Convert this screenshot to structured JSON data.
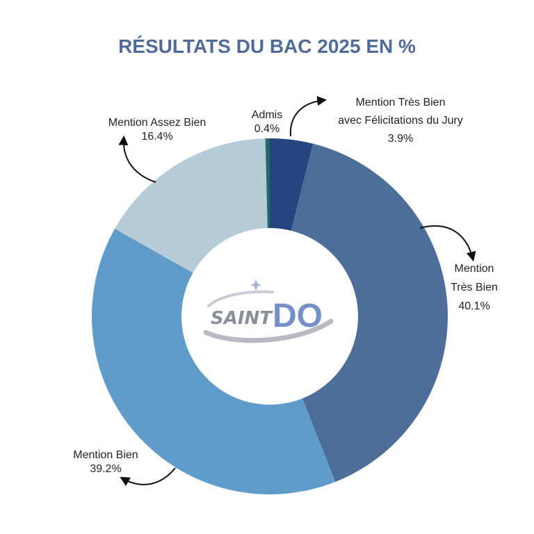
{
  "chart_data": {
    "type": "pie",
    "style": "donut",
    "title": "RÉSULTATS DU BAC 2025 EN %",
    "center_logo": "SAINT DO",
    "slices": [
      {
        "label_lines": [
          "Mention Très Bien",
          "avec Félicitations du Jury"
        ],
        "value": 3.9,
        "value_text": "3.9%",
        "color": "#244580"
      },
      {
        "label_lines": [
          "Mention",
          "Très Bien"
        ],
        "value": 40.1,
        "value_text": "40.1%",
        "color": "#4e6e9a"
      },
      {
        "label_lines": [
          "Mention Bien"
        ],
        "value": 39.2,
        "value_text": "39.2%",
        "color": "#609cc9"
      },
      {
        "label_lines": [
          "Mention Assez Bien"
        ],
        "value": 16.4,
        "value_text": "16.4%",
        "color": "#b6cdd9"
      },
      {
        "label_lines": [
          "Admis"
        ],
        "value": 0.4,
        "value_text": "0.4%",
        "color": "#1f6b6b"
      }
    ]
  }
}
